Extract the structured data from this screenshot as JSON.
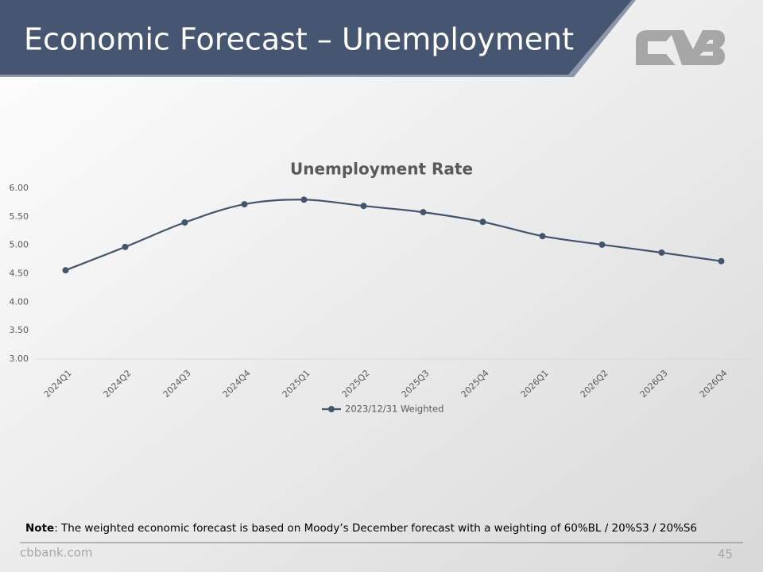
{
  "header": {
    "title": "Economic Forecast – Unemployment"
  },
  "chart_data": {
    "type": "line",
    "title": "Unemployment Rate",
    "categories": [
      "2024Q1",
      "2024Q2",
      "2024Q3",
      "2024Q4",
      "2025Q1",
      "2025Q2",
      "2025Q3",
      "2025Q4",
      "2026Q1",
      "2026Q2",
      "2026Q3",
      "2026Q4"
    ],
    "series": [
      {
        "name": "2023/12/31 Weighted",
        "color": "#44546a",
        "values": [
          4.56,
          4.97,
          5.4,
          5.72,
          5.8,
          5.69,
          5.58,
          5.41,
          5.16,
          5.01,
          4.87,
          4.72
        ]
      }
    ],
    "ylim": [
      3,
      6
    ],
    "yticks": [
      {
        "value": 3,
        "label": "3.00"
      },
      {
        "value": 3.5,
        "label": "3.50"
      },
      {
        "value": 4,
        "label": "4.00"
      },
      {
        "value": 4.5,
        "label": "4.50"
      },
      {
        "value": 5,
        "label": "5.00"
      },
      {
        "value": 5.5,
        "label": "5.50"
      },
      {
        "value": 6,
        "label": "6.00"
      }
    ],
    "grid": false,
    "smooth": true,
    "legend": "bottom"
  },
  "note": {
    "label": "Note",
    "text": ": The weighted economic forecast is based on Moody’s December forecast with a weighting of 60%BL / 20%S3 / 20%S6"
  },
  "footer": {
    "website": "cbbank.com",
    "page_number": "45"
  }
}
